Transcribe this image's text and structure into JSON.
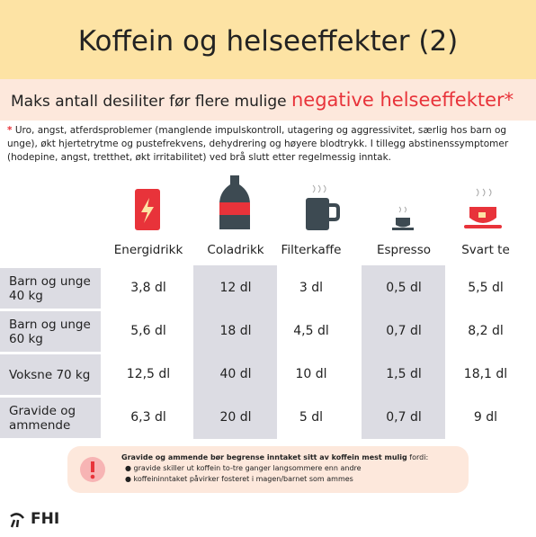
{
  "header": {
    "title": "Koffein og helseeffekter (2)"
  },
  "subtitle": {
    "lead": "Maks antall desiliter før flere mulige ",
    "highlight": "negative helseeffekter",
    "star": "*"
  },
  "note": {
    "star": "*",
    "text": "Uro, angst, atferdsproblemer (manglende impulskontroll, utagering og aggressivitet, særlig hos barn og unge), økt hjertetrytme og pustefrekvens, dehydrering og høyere blodtrykk. I tillegg abstinenssymptomer (hodepine, angst, tretthet, økt irritabilitet) ved brå slutt etter regelmessig inntak."
  },
  "table": {
    "columns": [
      "Energidrikk",
      "Coladrikk",
      "Filterkaffe",
      "Espresso",
      "Svart te"
    ],
    "rows": [
      {
        "label": "Barn og unge 40 kg",
        "cells": [
          "3,8 dl",
          "12 dl",
          "3 dl",
          "0,5 dl",
          "5,5 dl"
        ]
      },
      {
        "label": "Barn og unge 60 kg",
        "cells": [
          "5,6 dl",
          "18 dl",
          "4,5 dl",
          "0,7 dl",
          "8,2 dl"
        ]
      },
      {
        "label": "Voksne 70 kg",
        "cells": [
          "12,5 dl",
          "40 dl",
          "10 dl",
          "1,5 dl",
          "18,1 dl"
        ]
      },
      {
        "label": "Gravide og ammende",
        "cells": [
          "6,3 dl",
          "20 dl",
          "5 dl",
          "0,7 dl",
          "9 dl"
        ]
      }
    ]
  },
  "warning": {
    "bold": "Gravide og ammende bør begrense inntaket sitt av koffein mest mulig",
    "rest": " fordi:",
    "bullets": [
      "gravide skiller ut koffein to-tre ganger langsommere enn andre",
      "koffeininntaket påvirker fosteret i magen/barnet som ammes"
    ]
  },
  "footer": {
    "logo": "FHI"
  }
}
